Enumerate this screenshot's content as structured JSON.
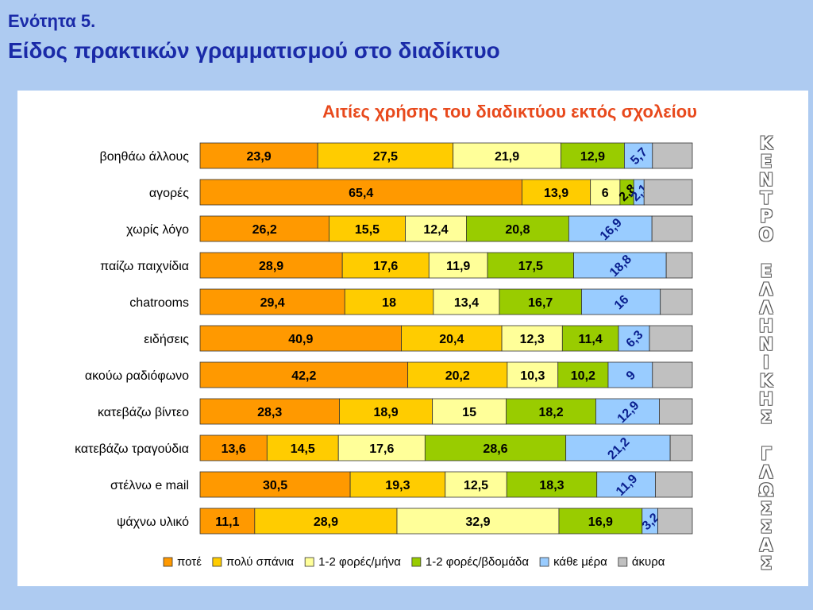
{
  "slide": {
    "section": "Ενότητα 5.",
    "subtitle": "Είδος πρακτικών γραμματισμού στο διαδίκτυο"
  },
  "watermark": {
    "lines": [
      "Κ",
      "Ε",
      "Ν",
      "Τ",
      "Ρ",
      "Ο",
      "",
      "Ε",
      "Λ",
      "Λ",
      "Η",
      "Ν",
      "Ι",
      "Κ",
      "Η",
      "Σ",
      "",
      "Γ",
      "Λ",
      "Ω",
      "Σ",
      "Σ",
      "Α",
      "Σ"
    ]
  },
  "chart_data": {
    "type": "bar",
    "orientation": "horizontal",
    "stacked": true,
    "normalized": true,
    "title": "Αιτίες χρήσης του διαδικτύου εκτός σχολείου",
    "legend_position": "bottom",
    "categories": [
      "βοηθάω άλλους",
      "αγορές",
      "χωρίς λόγο",
      "παίζω παιχνίδια",
      "chatrooms",
      "ειδήσεις",
      "ακούω ραδιόφωνο",
      "κατεβάζω βίντεο",
      "κατεβάζω τραγούδια",
      "στέλνω e mail",
      "ψάχνω υλικό"
    ],
    "series": [
      {
        "name": "ποτέ",
        "color": "#ff9900",
        "values": [
          23.9,
          65.4,
          26.2,
          28.9,
          29.4,
          40.9,
          42.2,
          28.3,
          13.6,
          30.5,
          11.1
        ],
        "labels": [
          "23,9",
          "65,4",
          "26,2",
          "28,9",
          "29,4",
          "40,9",
          "42,2",
          "28,3",
          "13,6",
          "30,5",
          "11,1"
        ]
      },
      {
        "name": "πολύ σπάνια",
        "color": "#ffcc00",
        "values": [
          27.5,
          13.9,
          15.5,
          17.6,
          18,
          20.4,
          20.2,
          18.9,
          14.5,
          19.3,
          28.9
        ],
        "labels": [
          "27,5",
          "13,9",
          "15,5",
          "17,6",
          "18",
          "20,4",
          "20,2",
          "18,9",
          "14,5",
          "19,3",
          "28,9"
        ]
      },
      {
        "name": "1-2 φορές/μήνα",
        "color": "#ffff99",
        "values": [
          21.9,
          6,
          12.4,
          11.9,
          13.4,
          12.3,
          10.3,
          15,
          17.6,
          12.5,
          32.9
        ],
        "labels": [
          "21,9",
          "6",
          "12,4",
          "11,9",
          "13,4",
          "12,3",
          "10,3",
          "15",
          "17,6",
          "12,5",
          "32,9"
        ]
      },
      {
        "name": "1-2 φορές/βδομάδα",
        "color": "#99cc00",
        "values": [
          12.9,
          2.8,
          20.8,
          17.5,
          16.7,
          11.4,
          10.2,
          18.2,
          28.6,
          18.3,
          16.9
        ],
        "labels": [
          "12,9",
          "2,8",
          "20,8",
          "17,5",
          "16,7",
          "11,4",
          "10,2",
          "18,2",
          "28,6",
          "18,3",
          "16,9"
        ]
      },
      {
        "name": "κάθε μέρα",
        "color": "#99ccff",
        "values": [
          5.7,
          2.1,
          16.9,
          18.8,
          16,
          6.3,
          9,
          12.9,
          21.2,
          11.9,
          3.2
        ],
        "labels": [
          "5,7",
          "2,1",
          "16,9",
          "18,8",
          "16",
          "6,3",
          "9",
          "12,9",
          "21,2",
          "11,9",
          "3,2"
        ]
      },
      {
        "name": "άκυρα",
        "color": "#c0c0c0",
        "values": [
          8.1,
          9.8,
          8.2,
          5.3,
          6.5,
          8.7,
          8.1,
          6.7,
          4.5,
          7.5,
          7.0
        ],
        "labels": [
          "",
          "",
          "",
          "",
          "",
          "",
          "",
          "",
          "",
          "",
          ""
        ]
      }
    ]
  }
}
